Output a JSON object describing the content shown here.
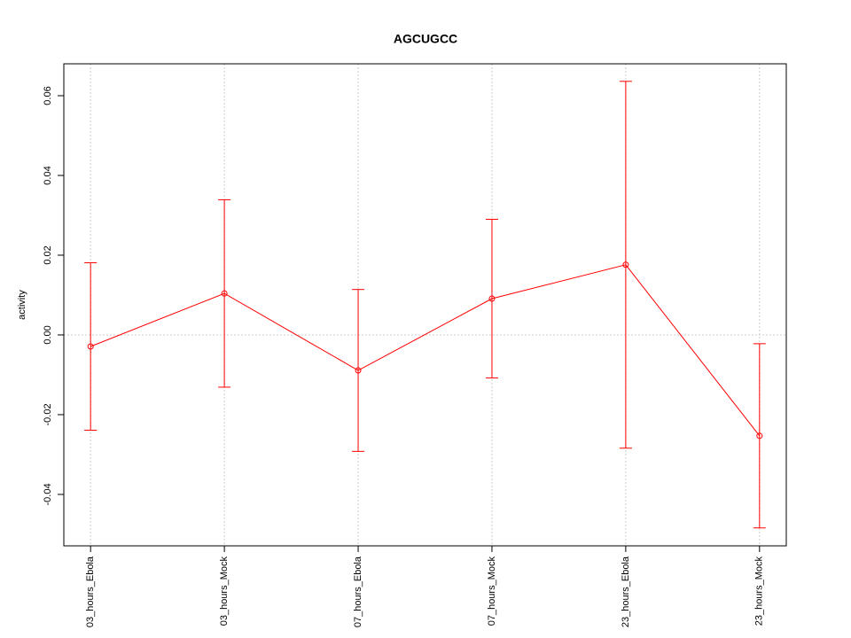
{
  "chart_data": {
    "type": "line",
    "title": "AGCUGCC",
    "ylabel": "activity",
    "categories": [
      "03_hours_Ebola",
      "03_hours_Mock",
      "07_hours_Ebola",
      "07_hours_Mock",
      "23_hours_Ebola",
      "23_hours_Mock"
    ],
    "values": [
      -0.0029,
      0.0104,
      -0.0089,
      0.0091,
      0.0176,
      -0.0253
    ],
    "errors": [
      0.021,
      0.0235,
      0.0203,
      0.0199,
      0.046,
      0.0231
    ],
    "color": "#ff0000",
    "ylim": [
      -0.0529,
      0.068
    ],
    "yticks": [
      -0.04,
      -0.02,
      {
        "value": 0,
        "label": "0.00"
      },
      0.02,
      0.04,
      0.06
    ],
    "hline": 0,
    "grid": true
  }
}
